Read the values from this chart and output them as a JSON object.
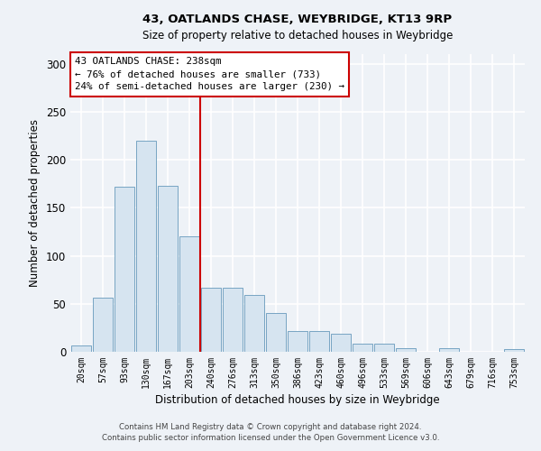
{
  "title": "43, OATLANDS CHASE, WEYBRIDGE, KT13 9RP",
  "subtitle": "Size of property relative to detached houses in Weybridge",
  "xlabel": "Distribution of detached houses by size in Weybridge",
  "ylabel": "Number of detached properties",
  "bar_color": "#d6e4f0",
  "bar_edge_color": "#6699bb",
  "categories": [
    "20sqm",
    "57sqm",
    "93sqm",
    "130sqm",
    "167sqm",
    "203sqm",
    "240sqm",
    "276sqm",
    "313sqm",
    "350sqm",
    "386sqm",
    "423sqm",
    "460sqm",
    "496sqm",
    "533sqm",
    "569sqm",
    "606sqm",
    "643sqm",
    "679sqm",
    "716sqm",
    "753sqm"
  ],
  "values": [
    7,
    56,
    172,
    220,
    173,
    120,
    67,
    67,
    59,
    40,
    22,
    22,
    19,
    8,
    8,
    4,
    0,
    4,
    0,
    0,
    3
  ],
  "ylim": [
    0,
    310
  ],
  "yticks": [
    0,
    50,
    100,
    150,
    200,
    250,
    300
  ],
  "property_label": "43 OATLANDS CHASE: 238sqm",
  "annotation_line1": "← 76% of detached houses are smaller (733)",
  "annotation_line2": "24% of semi-detached houses are larger (230) →",
  "vline_x_index": 5.5,
  "footer_line1": "Contains HM Land Registry data © Crown copyright and database right 2024.",
  "footer_line2": "Contains public sector information licensed under the Open Government Licence v3.0.",
  "background_color": "#eef2f7",
  "grid_color": "#ffffff",
  "vline_color": "#cc0000",
  "annotation_box_color": "#ffffff",
  "annotation_box_edge": "#cc0000"
}
